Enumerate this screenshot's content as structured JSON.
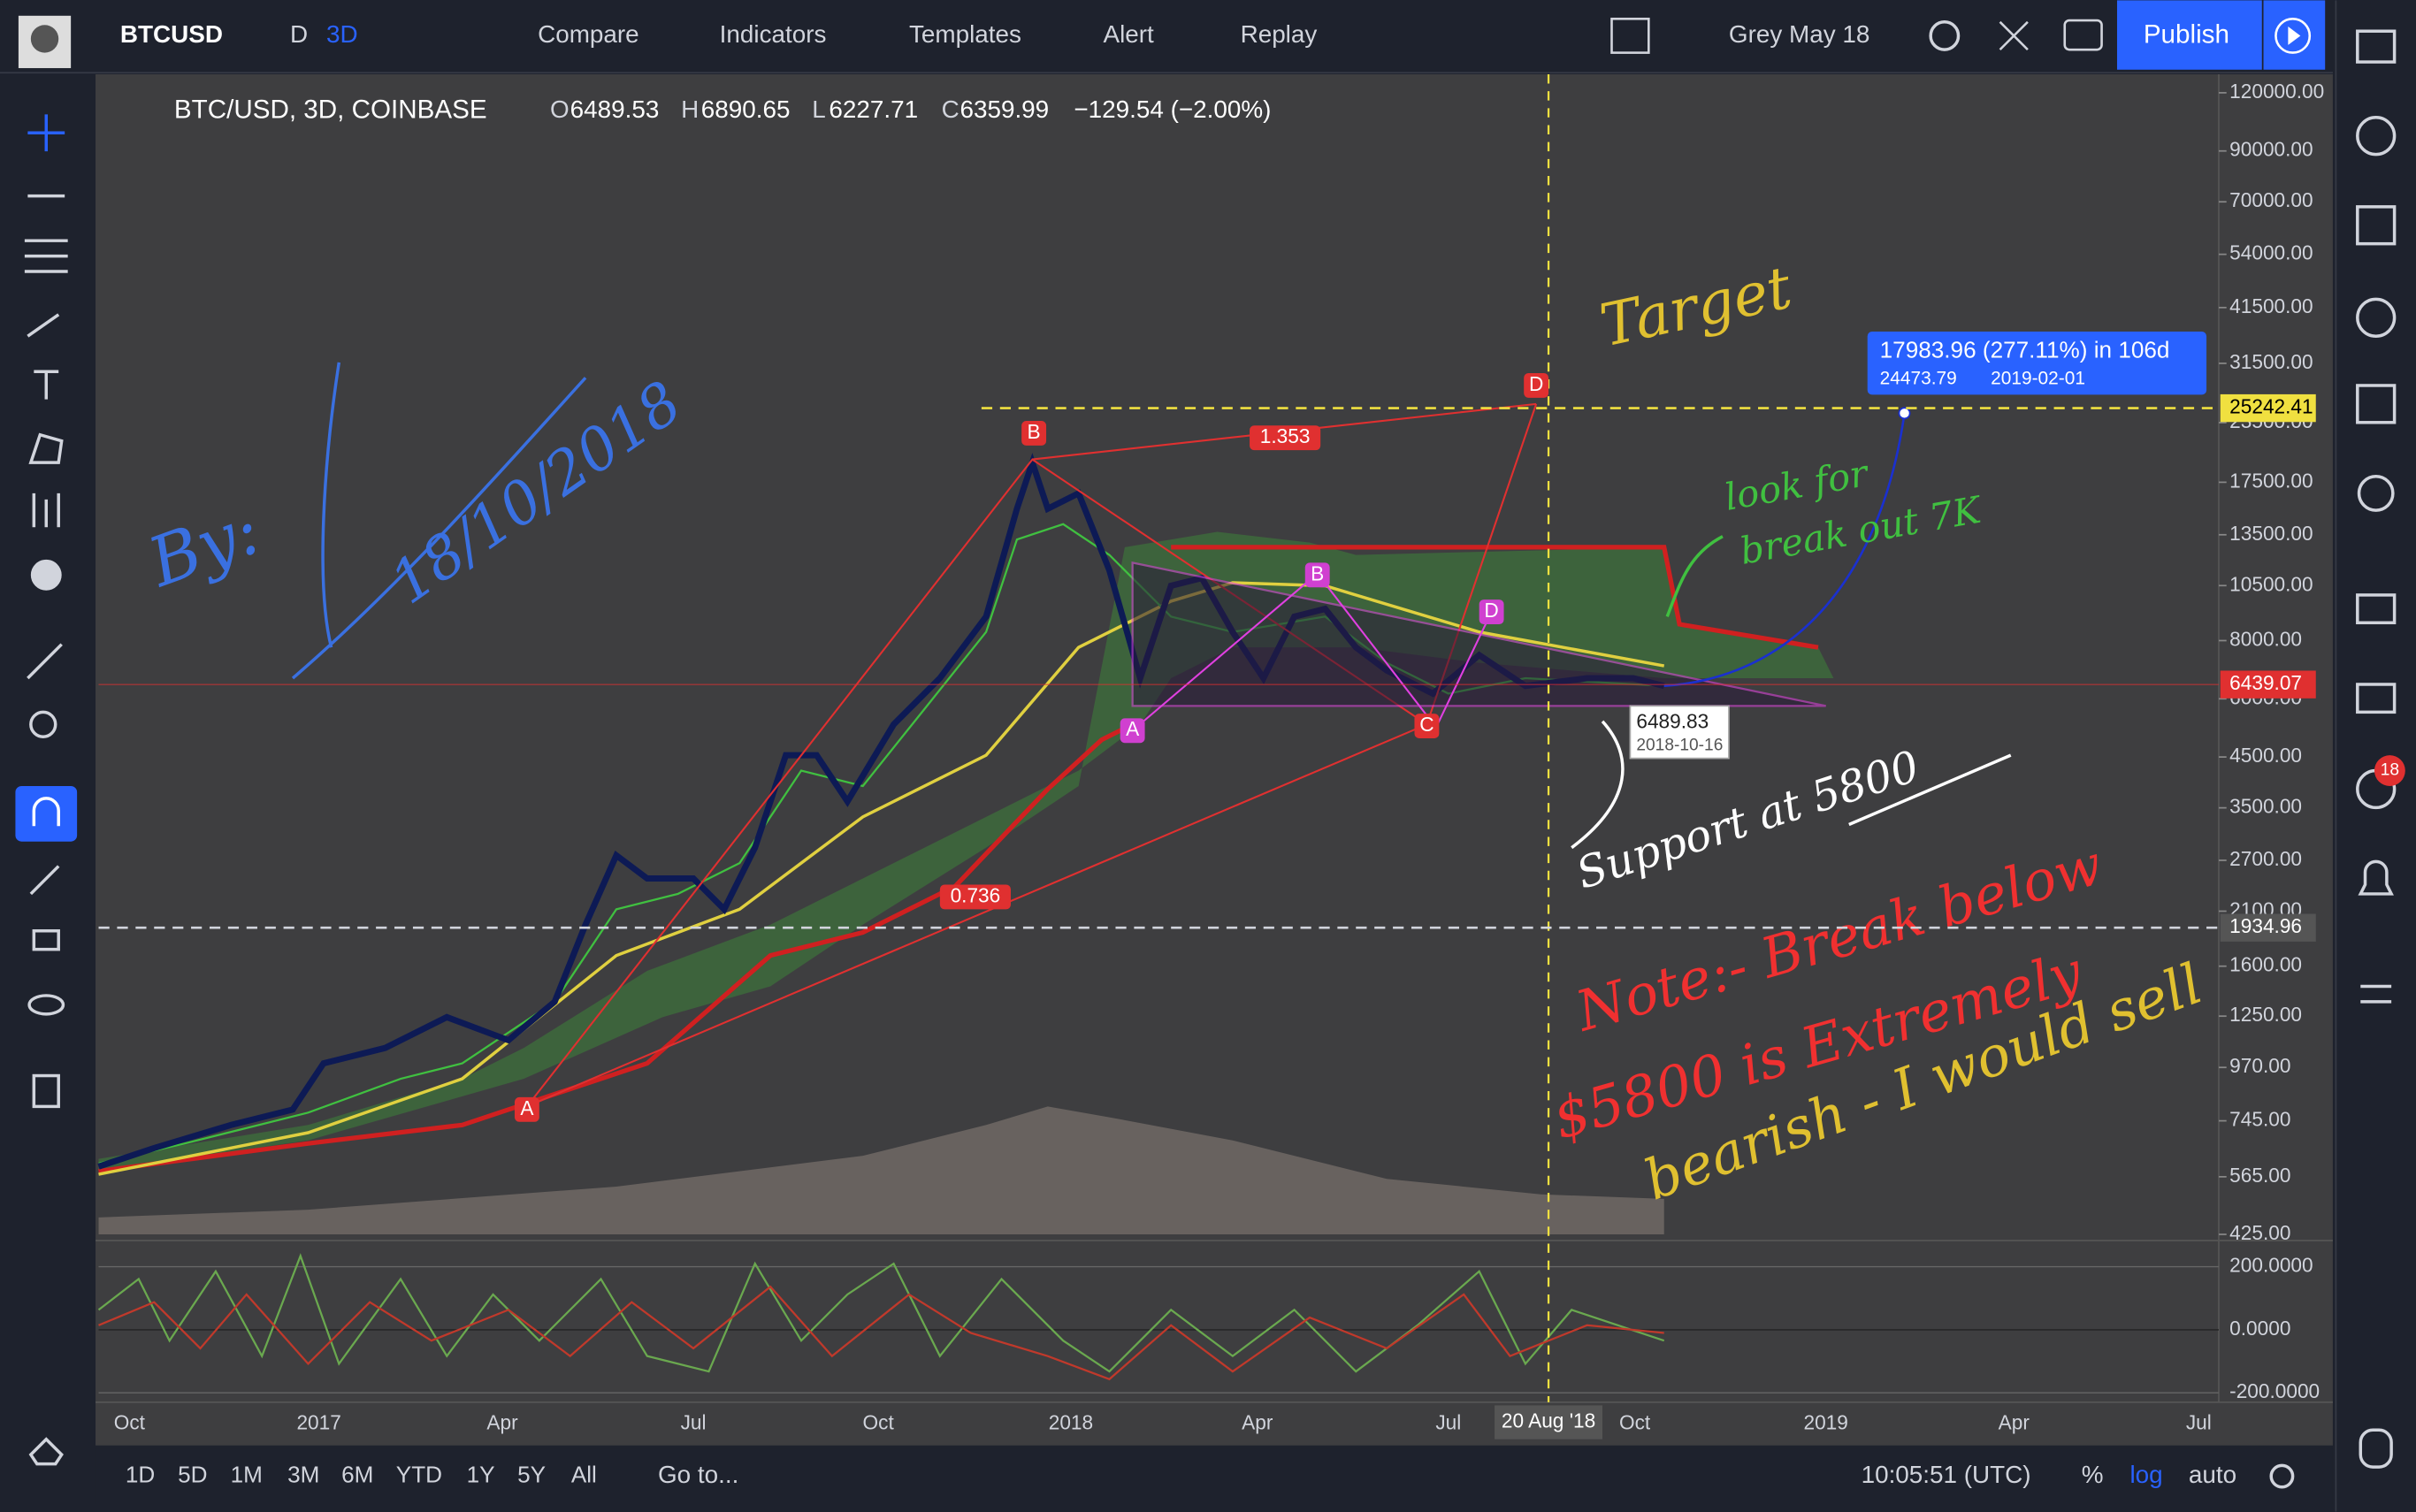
{
  "toolbar": {
    "symbol": "BTCUSD",
    "intervals": [
      "D",
      "3D"
    ],
    "items": [
      "Compare",
      "Indicators",
      "Templates",
      "Alert",
      "Replay"
    ],
    "layout": "Grey May 18",
    "publish": "Publish"
  },
  "legend": {
    "title": "BTC/USD, 3D, COINBASE",
    "open_label": "O",
    "open": "6489.53",
    "high_label": "H",
    "high": "6890.65",
    "low_label": "L",
    "low": "6227.71",
    "close_label": "C",
    "close": "6359.99",
    "change": "−129.54 (−2.00%)"
  },
  "price_axis": {
    "log": true,
    "ylim": [
      425,
      120000
    ],
    "ticks": [
      {
        "value": 120000,
        "label": "120000.00"
      },
      {
        "value": 90000,
        "label": "90000.00"
      },
      {
        "value": 70000,
        "label": "70000.00"
      },
      {
        "value": 54000,
        "label": "54000.00"
      },
      {
        "value": 41500,
        "label": "41500.00"
      },
      {
        "value": 31500,
        "label": "31500.00"
      },
      {
        "value": 23500,
        "label": "23500.00"
      },
      {
        "value": 17500,
        "label": "17500.00"
      },
      {
        "value": 13500,
        "label": "13500.00"
      },
      {
        "value": 10500,
        "label": "10500.00"
      },
      {
        "value": 8000,
        "label": "8000.00"
      },
      {
        "value": 6000,
        "label": "6000.00"
      },
      {
        "value": 4500,
        "label": "4500.00"
      },
      {
        "value": 3500,
        "label": "3500.00"
      },
      {
        "value": 2700,
        "label": "2700.00"
      },
      {
        "value": 2100,
        "label": "2100.00"
      },
      {
        "value": 1600,
        "label": "1600.00"
      },
      {
        "value": 1250,
        "label": "1250.00"
      },
      {
        "value": 970,
        "label": "970.00"
      },
      {
        "value": 745,
        "label": "745.00"
      },
      {
        "value": 565,
        "label": "565.00"
      },
      {
        "value": 425,
        "label": "425.00"
      }
    ],
    "markers": [
      {
        "value": 25242.41,
        "color": "#f0e040"
      },
      {
        "value": 6439.07,
        "color": "#e03030"
      },
      {
        "value": 1934.96,
        "color": "#d1d4dc"
      }
    ]
  },
  "oscillator_axis": {
    "ylim": [
      -230,
      283
    ],
    "ticks": [
      {
        "value": 200,
        "label": "200.0000"
      },
      {
        "value": 0,
        "label": "0.0000"
      },
      {
        "value": -200,
        "label": "-200.0000"
      }
    ]
  },
  "time_axis": {
    "labels": [
      "Oct",
      "2017",
      "Apr",
      "Jul",
      "Oct",
      "2018",
      "Apr",
      "Jul",
      "Oct",
      "2019",
      "Apr",
      "Jul"
    ],
    "crosshair": "20 Aug '18"
  },
  "pattern_labels": {
    "x_a": "A",
    "x_b": "B",
    "x_c": "C",
    "x_d": "D",
    "ratio_high": "1.353",
    "ratio_low": "0.736",
    "m_a": "A",
    "m_b": "B",
    "m_d": "D"
  },
  "projection": {
    "headline": "17983.96 (277.11%) in 106d",
    "price": "24473.79",
    "date": "2019-02-01"
  },
  "cursor_tip": {
    "price": "6489.83",
    "date": "2018-10-16"
  },
  "handwriting": {
    "by": "By:",
    "date": "18/10/2018",
    "target": "Target",
    "breakout": [
      "look for",
      "break out 7K"
    ],
    "support": "Support at 5800",
    "note": [
      "Note:- Break below",
      "$5800 is Extremely",
      "bearish - I would sell"
    ]
  },
  "bottom_bar": {
    "ranges": [
      "1D",
      "5D",
      "1M",
      "3M",
      "6M",
      "YTD",
      "1Y",
      "5Y",
      "All"
    ],
    "goto": "Go to...",
    "clock": "10:05:51 (UTC)",
    "percent": "%",
    "log": "log",
    "auto": "auto"
  },
  "badge": "18"
}
